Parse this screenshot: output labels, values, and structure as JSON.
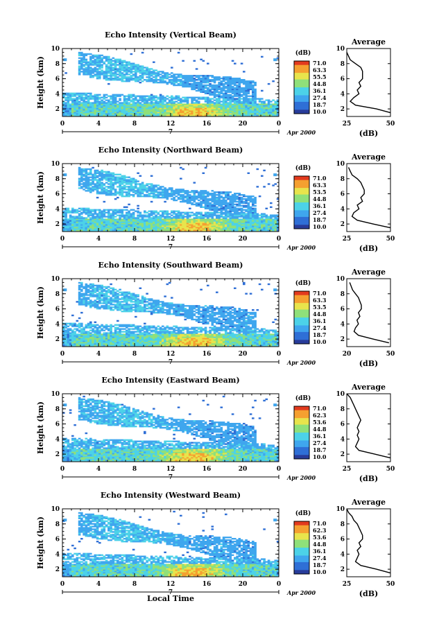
{
  "chart_data": [
    {
      "type": "heatmap",
      "title": "Echo Intensity (Vertical Beam)",
      "ylabel": "Height (km)",
      "x_ticks": [
        "0",
        "4",
        "8",
        "12",
        "16",
        "20",
        "0"
      ],
      "y_ticks": [
        "2",
        "4",
        "6",
        "8",
        "10"
      ],
      "date_day": "7",
      "date_label": "Apr 2000",
      "xlim": [
        0,
        24
      ],
      "ylim": [
        1,
        10
      ],
      "colorbar": {
        "unit": "(dB)",
        "labels": [
          "71.0",
          "63.3",
          "55.5",
          "44.8",
          "36.1",
          "27.4",
          "18.7",
          "10.0"
        ]
      },
      "profile": {
        "title": "Average",
        "xlabel": "(dB)",
        "x_ticks": [
          "25",
          "50"
        ],
        "xlim": [
          25,
          50
        ],
        "y_ticks": [
          "2",
          "4",
          "6",
          "8",
          "10"
        ],
        "heights": [
          1.5,
          2,
          2.5,
          3,
          3.5,
          4,
          4.5,
          5,
          5.5,
          6,
          6.5,
          7,
          7.5,
          8,
          8.5,
          9,
          9.5
        ],
        "values": [
          50,
          42,
          30,
          27,
          29,
          32,
          31,
          33,
          32,
          34,
          34,
          34,
          33,
          30,
          27,
          26,
          25
        ]
      }
    },
    {
      "type": "heatmap",
      "title": "Echo Intensity (Northward Beam)",
      "ylabel": "Height (km)",
      "x_ticks": [
        "0",
        "4",
        "8",
        "12",
        "16",
        "20",
        "0"
      ],
      "y_ticks": [
        "2",
        "4",
        "6",
        "8",
        "10"
      ],
      "date_day": "7",
      "date_label": "Apr 2000",
      "xlim": [
        0,
        24
      ],
      "ylim": [
        1,
        10
      ],
      "colorbar": {
        "unit": "(dB)",
        "labels": [
          "71.0",
          "63.3",
          "53.5",
          "44.8",
          "36.1",
          "27.4",
          "18.7",
          "10.0"
        ]
      },
      "profile": {
        "title": "Average",
        "xlabel": "(dB)",
        "x_ticks": [
          "25",
          "50"
        ],
        "xlim": [
          25,
          50
        ],
        "y_ticks": [
          "2",
          "4",
          "6",
          "8",
          "10"
        ],
        "heights": [
          1.5,
          2,
          2.5,
          3,
          3.5,
          4,
          4.5,
          5,
          5.5,
          6,
          6.5,
          7,
          7.5,
          8,
          8.5,
          9,
          9.5
        ],
        "values": [
          50,
          40,
          31,
          28,
          29,
          32,
          31,
          34,
          33,
          35,
          35,
          34,
          33,
          31,
          28,
          27,
          26
        ]
      }
    },
    {
      "type": "heatmap",
      "title": "Echo Intensity (Southward Beam)",
      "ylabel": "Height (km)",
      "x_ticks": [
        "0",
        "4",
        "8",
        "12",
        "16",
        "20",
        "0"
      ],
      "y_ticks": [
        "2",
        "4",
        "6",
        "8",
        "10"
      ],
      "date_day": "7",
      "date_label": "Apr 2000",
      "xlim": [
        0,
        24
      ],
      "ylim": [
        1,
        10
      ],
      "colorbar": {
        "unit": "(dB)",
        "labels": [
          "71.0",
          "63.3",
          "53.5",
          "44.8",
          "36.1",
          "27.4",
          "18.7",
          "10.0"
        ]
      },
      "profile": {
        "title": "Average",
        "xlabel": "(dB)",
        "x_ticks": [
          "20",
          "50"
        ],
        "xlim": [
          20,
          50
        ],
        "y_ticks": [
          "2",
          "4",
          "6",
          "8",
          "10"
        ],
        "heights": [
          1.5,
          2,
          2.5,
          3,
          3.5,
          4,
          4.5,
          5,
          5.5,
          6,
          6.5,
          7,
          7.5,
          8,
          8.5,
          9,
          9.5
        ],
        "values": [
          49,
          38,
          28,
          25,
          26,
          28,
          27,
          29,
          28,
          30,
          30,
          29,
          28,
          26,
          24,
          23,
          22
        ]
      }
    },
    {
      "type": "heatmap",
      "title": "Echo Intensity (Eastward Beam)",
      "ylabel": "Height (km)",
      "x_ticks": [
        "0",
        "4",
        "8",
        "12",
        "16",
        "20",
        "0"
      ],
      "y_ticks": [
        "2",
        "4",
        "6",
        "8",
        "10"
      ],
      "date_day": "7",
      "date_label": "Apr 2000",
      "xlim": [
        0,
        24
      ],
      "ylim": [
        1,
        10
      ],
      "colorbar": {
        "unit": "(dB)",
        "labels": [
          "71.0",
          "62.3",
          "53.6",
          "44.8",
          "36.1",
          "27.4",
          "18.7",
          "10.0"
        ]
      },
      "profile": {
        "title": "Average",
        "xlabel": "(dB)",
        "x_ticks": [
          "25",
          "50"
        ],
        "xlim": [
          25,
          50
        ],
        "y_ticks": [
          "2",
          "4",
          "6",
          "8",
          "10"
        ],
        "heights": [
          1.5,
          2,
          2.5,
          3,
          3.5,
          4,
          4.5,
          5,
          5.5,
          6,
          6.5,
          7,
          7.5,
          8,
          8.5,
          9,
          9.5,
          10
        ],
        "values": [
          50,
          41,
          32,
          30,
          31,
          32,
          31,
          32,
          31,
          32,
          33,
          32,
          31,
          30,
          29,
          28,
          27,
          25
        ]
      }
    },
    {
      "type": "heatmap",
      "title": "Echo Intensity (Westward Beam)",
      "ylabel": "Height (km)",
      "xlabel": "Local Time",
      "x_ticks": [
        "0",
        "4",
        "8",
        "12",
        "16",
        "20",
        "0"
      ],
      "y_ticks": [
        "2",
        "4",
        "6",
        "8",
        "10"
      ],
      "date_day": "7",
      "date_label": "Apr 2000",
      "xlim": [
        0,
        24
      ],
      "ylim": [
        1,
        10
      ],
      "colorbar": {
        "unit": "(dB)",
        "labels": [
          "71.0",
          "62.3",
          "53.6",
          "44.8",
          "36.1",
          "27.4",
          "18.7",
          "10.0"
        ]
      },
      "profile": {
        "title": "Average",
        "xlabel": "(dB)",
        "x_ticks": [
          "25",
          "50"
        ],
        "xlim": [
          25,
          50
        ],
        "y_ticks": [
          "2",
          "4",
          "6",
          "8",
          "10"
        ],
        "heights": [
          1.5,
          2,
          2.5,
          3,
          3.5,
          4,
          4.5,
          5,
          5.5,
          6,
          6.5,
          7,
          7.5,
          8,
          8.5,
          9,
          9.5,
          10
        ],
        "values": [
          50,
          42,
          33,
          30,
          31,
          32,
          31,
          33,
          32,
          34,
          34,
          33,
          32,
          31,
          29,
          28,
          26,
          25
        ]
      }
    }
  ],
  "colors": {
    "colormap": [
      "#283c9a",
      "#2f6fd6",
      "#3fa6ee",
      "#4cd2e8",
      "#8fe07a",
      "#e8e44c",
      "#f5a030",
      "#e23a1e"
    ]
  }
}
